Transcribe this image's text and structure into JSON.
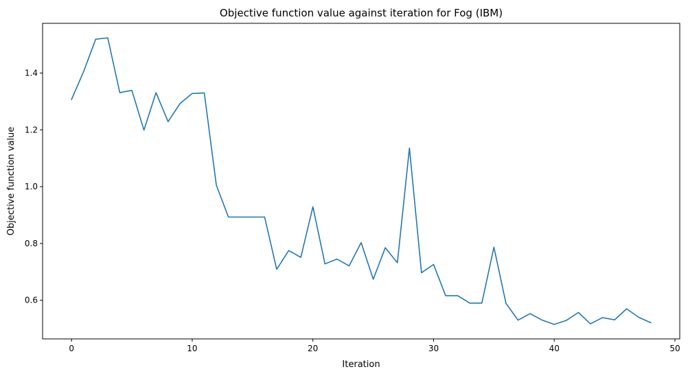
{
  "chart_data": {
    "type": "line",
    "title": "Objective function value against iteration for Fog (IBM)",
    "xlabel": "Iteration",
    "ylabel": "Objective function value",
    "xlim": [
      -2.4,
      50.4
    ],
    "ylim": [
      0.464,
      1.575
    ],
    "xticks": [
      0,
      10,
      20,
      30,
      40,
      50
    ],
    "yticks": [
      0.6,
      0.8,
      1.0,
      1.2,
      1.4
    ],
    "xtick_labels": [
      "0",
      "10",
      "20",
      "30",
      "40",
      "50"
    ],
    "ytick_labels": [
      "0.6",
      "0.8",
      "1.0",
      "1.2",
      "1.4"
    ],
    "grid": false,
    "legend": "none",
    "series": [
      {
        "color": "#1f77b4",
        "x": [
          0,
          1,
          2,
          3,
          4,
          5,
          6,
          7,
          8,
          9,
          10,
          11,
          12,
          13,
          14,
          15,
          16,
          17,
          18,
          19,
          20,
          21,
          22,
          23,
          24,
          25,
          26,
          27,
          28,
          29,
          30,
          31,
          32,
          33,
          34,
          35,
          36,
          37,
          38,
          39,
          40,
          41,
          42,
          43,
          44,
          45,
          46,
          47,
          48
        ],
        "y": [
          1.307,
          1.405,
          1.519,
          1.524,
          1.331,
          1.339,
          1.199,
          1.331,
          1.229,
          1.293,
          1.328,
          1.33,
          1.005,
          0.893,
          0.893,
          0.893,
          0.893,
          0.709,
          0.775,
          0.751,
          0.929,
          0.728,
          0.745,
          0.721,
          0.803,
          0.674,
          0.785,
          0.732,
          1.136,
          0.697,
          0.726,
          0.616,
          0.616,
          0.59,
          0.59,
          0.787,
          0.589,
          0.53,
          0.553,
          0.53,
          0.515,
          0.529,
          0.557,
          0.517,
          0.539,
          0.531,
          0.57,
          0.54,
          0.521
        ]
      }
    ]
  }
}
